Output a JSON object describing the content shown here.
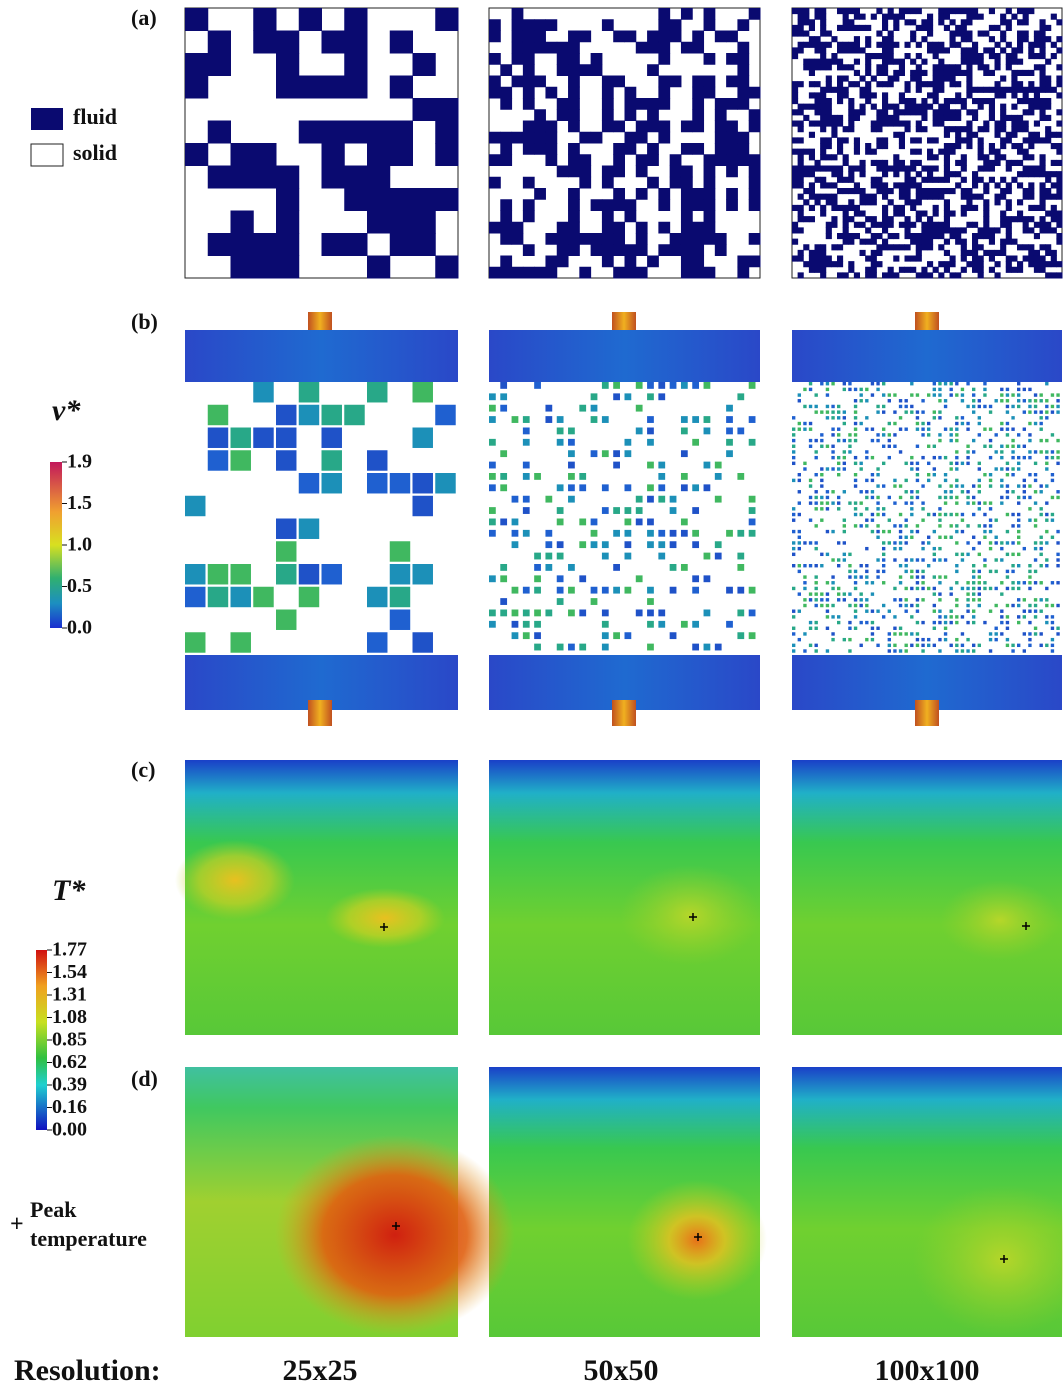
{
  "panel_labels": [
    "(a)",
    "(b)",
    "(c)",
    "(d)"
  ],
  "legend": {
    "fluid": "fluid",
    "solid": "solid"
  },
  "velocity_colorbar": {
    "title": "v*",
    "ticks": [
      "1.9",
      "1.5",
      "1.0",
      "0.5",
      "0.0"
    ]
  },
  "temperature_colorbar": {
    "title": "T*",
    "ticks": [
      "1.77",
      "1.54",
      "1.31",
      "1.08",
      "0.85",
      "0.62",
      "0.39",
      "0.16",
      "0.00"
    ]
  },
  "peak_marker": {
    "symbol": "+",
    "label_lines": [
      "Peak",
      "temperature"
    ]
  },
  "resolution": {
    "label": "Resolution:",
    "columns": [
      "25x25",
      "50x50",
      "100x100"
    ]
  }
}
